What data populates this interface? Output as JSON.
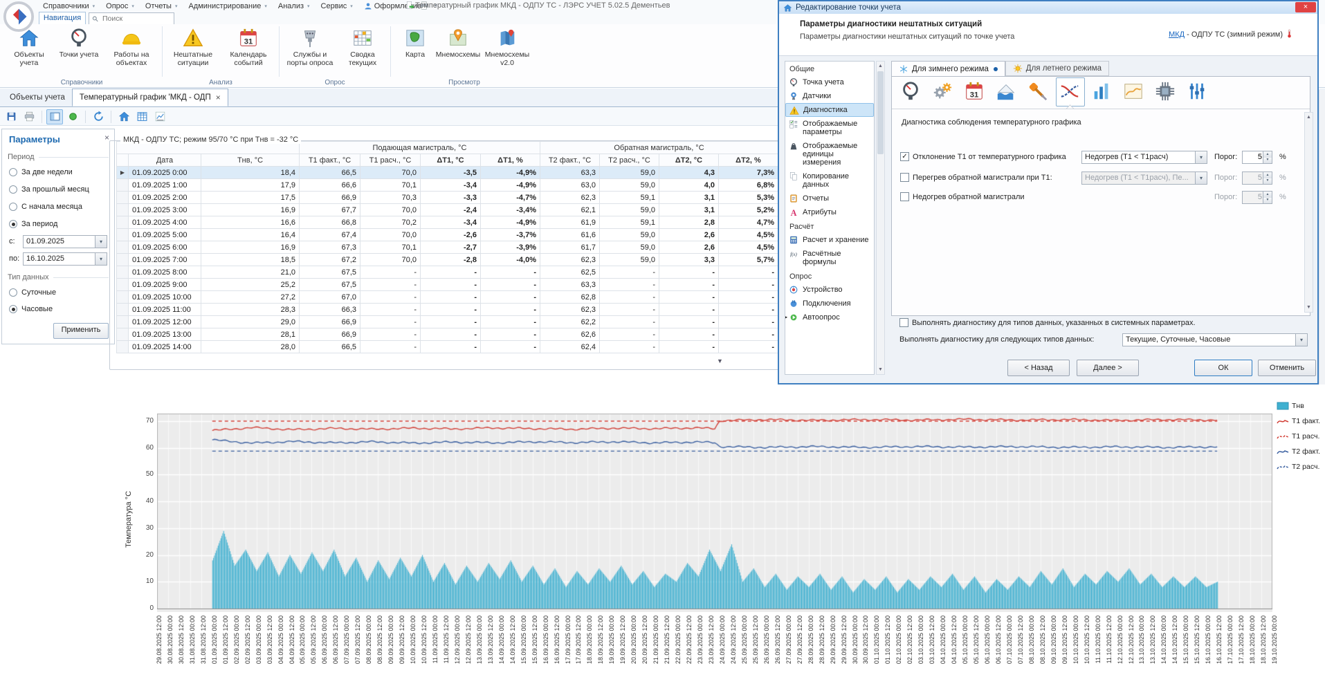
{
  "app": {
    "title": "Температурный график МКД - ОДПУ ТС - ЛЭРС УЧЕТ 5.02.5 Дементьев",
    "menus": [
      "Справочники",
      "Опрос",
      "Отчеты",
      "Администрирование",
      "Анализ",
      "Сервис",
      "Оформление"
    ],
    "nav_tab": "Навигация",
    "search_placeholder": "Поиск"
  },
  "ribbon": {
    "groups": [
      {
        "label": "Справочники",
        "items": [
          {
            "label": "Объекты учета",
            "icon": "home"
          },
          {
            "label": "Точки учета",
            "icon": "gauge"
          },
          {
            "label": "Работы на объектах",
            "icon": "hardhat"
          }
        ]
      },
      {
        "label": "Анализ",
        "items": [
          {
            "label": "Нештатные ситуации",
            "icon": "warning"
          },
          {
            "label": "Календарь событий",
            "icon": "calendar"
          }
        ]
      },
      {
        "label": "Опрос",
        "items": [
          {
            "label": "Службы и порты опроса",
            "icon": "ports"
          },
          {
            "label": "Сводка текущих",
            "icon": "summary-grid"
          }
        ]
      },
      {
        "label": "Просмотр",
        "items": [
          {
            "label": "Карта",
            "icon": "map"
          },
          {
            "label": "Мнемосхемы",
            "icon": "mnemo-pin"
          },
          {
            "label": "Мнемосхемы v2.0",
            "icon": "mnemo-pin2"
          }
        ]
      }
    ]
  },
  "doc_tabs": [
    {
      "label": "Объекты учета",
      "active": false,
      "closable": false
    },
    {
      "label": "Температурный график 'МКД - ОДП",
      "active": true,
      "closable": true
    }
  ],
  "toolbar": {
    "buttons": [
      {
        "icon": "save"
      },
      {
        "icon": "print"
      },
      {
        "sep": true
      },
      {
        "icon": "toggle-panel",
        "pressed": true
      },
      {
        "icon": "status"
      },
      {
        "sep": true
      },
      {
        "icon": "refresh"
      },
      {
        "sep": true
      },
      {
        "icon": "home-mini"
      },
      {
        "icon": "table-view"
      },
      {
        "icon": "chart-view"
      }
    ]
  },
  "params": {
    "title": "Параметры",
    "period_label": "Период",
    "period_options": [
      {
        "label": "За две недели",
        "selected": false
      },
      {
        "label": "За прошлый месяц",
        "selected": false
      },
      {
        "label": "С начала месяца",
        "selected": false
      },
      {
        "label": "За период",
        "selected": true
      }
    ],
    "from_label": "с:",
    "from_value": "01.09.2025",
    "to_label": "по:",
    "to_value": "16.10.2025",
    "datatype_label": "Тип данных",
    "datatype_options": [
      {
        "label": "Суточные",
        "selected": false
      },
      {
        "label": "Часовые",
        "selected": true
      }
    ],
    "apply_label": "Применить"
  },
  "table": {
    "caption": "МКД - ОДПУ ТС; режим 95/70 °С при Тнв = -32 °С",
    "group_headers": [
      "Подающая магистраль, °С",
      "Обратная магистраль, °С"
    ],
    "columns": [
      "Дата",
      "Тнв, °С",
      "Т1 факт., °С",
      "Т1 расч., °С",
      "ΔТ1, °С",
      "ΔТ1, %",
      "Т2 факт., °С",
      "Т2 расч., °С",
      "ΔТ2, °С",
      "ΔТ2, %"
    ],
    "rows": [
      {
        "date": "01.09.2025 0:00",
        "c": [
          "18,4",
          "66,5",
          "70,0",
          "-3,5",
          "-4,9%",
          "63,3",
          "59,0",
          "4,3",
          "7,3%"
        ],
        "red": [],
        "sel": true
      },
      {
        "date": "01.09.2025 1:00",
        "c": [
          "17,9",
          "66,6",
          "70,1",
          "-3,4",
          "-4,9%",
          "63,0",
          "59,0",
          "4,0",
          "6,8%"
        ],
        "red": [
          3,
          4,
          7,
          8
        ]
      },
      {
        "date": "01.09.2025 2:00",
        "c": [
          "17,5",
          "66,9",
          "70,3",
          "-3,3",
          "-4,7%",
          "62,3",
          "59,1",
          "3,1",
          "5,3%"
        ],
        "red": [
          3,
          4,
          7,
          8
        ]
      },
      {
        "date": "01.09.2025 3:00",
        "c": [
          "16,9",
          "67,7",
          "70,0",
          "-2,4",
          "-3,4%",
          "62,1",
          "59,0",
          "3,1",
          "5,2%"
        ],
        "red": [
          3,
          4,
          7,
          8
        ]
      },
      {
        "date": "01.09.2025 4:00",
        "c": [
          "16,6",
          "66,8",
          "70,2",
          "-3,4",
          "-4,9%",
          "61,9",
          "59,1",
          "2,8",
          "4,7%"
        ],
        "red": [
          3,
          4
        ]
      },
      {
        "date": "01.09.2025 5:00",
        "c": [
          "16,4",
          "67,4",
          "70,0",
          "-2,6",
          "-3,7%",
          "61,6",
          "59,0",
          "2,6",
          "4,5%"
        ],
        "red": [
          3,
          4
        ]
      },
      {
        "date": "01.09.2025 6:00",
        "c": [
          "16,9",
          "67,3",
          "70,1",
          "-2,7",
          "-3,9%",
          "61,7",
          "59,0",
          "2,6",
          "4,5%"
        ],
        "red": [
          3,
          4
        ]
      },
      {
        "date": "01.09.2025 7:00",
        "c": [
          "18,5",
          "67,2",
          "70,0",
          "-2,8",
          "-4,0%",
          "62,3",
          "59,0",
          "3,3",
          "5,7%"
        ],
        "red": [
          3,
          4,
          7,
          8
        ]
      },
      {
        "date": "01.09.2025 8:00",
        "c": [
          "21,0",
          "67,5",
          "-",
          "-",
          "-",
          "62,5",
          "-",
          "-",
          "-"
        ],
        "red": []
      },
      {
        "date": "01.09.2025 9:00",
        "c": [
          "25,2",
          "67,5",
          "-",
          "-",
          "-",
          "63,3",
          "-",
          "-",
          "-"
        ],
        "red": []
      },
      {
        "date": "01.09.2025 10:00",
        "c": [
          "27,2",
          "67,0",
          "-",
          "-",
          "-",
          "62,8",
          "-",
          "-",
          "-"
        ],
        "red": []
      },
      {
        "date": "01.09.2025 11:00",
        "c": [
          "28,3",
          "66,3",
          "-",
          "-",
          "-",
          "62,3",
          "-",
          "-",
          "-"
        ],
        "red": []
      },
      {
        "date": "01.09.2025 12:00",
        "c": [
          "29,0",
          "66,9",
          "-",
          "-",
          "-",
          "62,2",
          "-",
          "-",
          "-"
        ],
        "red": []
      },
      {
        "date": "01.09.2025 13:00",
        "c": [
          "28,1",
          "66,9",
          "-",
          "-",
          "-",
          "62,6",
          "-",
          "-",
          "-"
        ],
        "red": []
      },
      {
        "date": "01.09.2025 14:00",
        "c": [
          "28,0",
          "66,5",
          "-",
          "-",
          "-",
          "62,4",
          "-",
          "-",
          "-"
        ],
        "red": []
      }
    ]
  },
  "dialog": {
    "title": "Редактирование точки учета",
    "close_glyph": "×",
    "header": {
      "title": "Параметры диагностики нештатных ситуаций",
      "subtitle": "Параметры диагностики нештатных ситуаций по точке учета"
    },
    "point_link": {
      "link": "МКД",
      "rest": " - ОДПУ ТС (зимний режим)"
    },
    "nav": [
      {
        "type": "header",
        "label": "Общие"
      },
      {
        "type": "item",
        "icon": "gauge-mini",
        "label": "Точка учета"
      },
      {
        "type": "item",
        "icon": "sensor",
        "label": "Датчики"
      },
      {
        "type": "item",
        "icon": "warning-mini",
        "label": "Диагностика",
        "selected": true
      },
      {
        "type": "item",
        "icon": "display-params",
        "label": "Отображаемые параметры"
      },
      {
        "type": "item",
        "icon": "units",
        "label": "Отображаемые единицы измерения"
      },
      {
        "type": "item",
        "icon": "copy",
        "label": "Копирование данных"
      },
      {
        "type": "item",
        "icon": "report",
        "label": "Отчеты"
      },
      {
        "type": "item",
        "icon": "attribute",
        "label": "Атрибуты"
      },
      {
        "type": "header",
        "label": "Расчёт"
      },
      {
        "type": "item",
        "icon": "calculator",
        "label": "Расчет и хранение"
      },
      {
        "type": "item",
        "icon": "formula",
        "label": "Расчётные формулы"
      },
      {
        "type": "header",
        "label": "Опрос"
      },
      {
        "type": "item",
        "icon": "device",
        "label": "Устройство"
      },
      {
        "type": "item",
        "icon": "connection",
        "label": "Подключения"
      },
      {
        "type": "item",
        "icon": "autopoll",
        "label": "Автоопрос",
        "expander": true
      }
    ],
    "tabs": [
      {
        "label": "Для зимнего режима",
        "icon": "snowflake",
        "active": true,
        "modified": true
      },
      {
        "label": "Для летнего режима",
        "icon": "sun",
        "active": false,
        "modified": false
      }
    ],
    "toolbar_icons": [
      "gauge",
      "gears",
      "calendar",
      "flood",
      "screwdriver",
      "temp-graph",
      "bar-chart",
      "picture-chart",
      "memory-chip",
      "setpoints"
    ],
    "toolbar_selected_index": 5,
    "section_label": "Диагностика соблюдения температурного графика",
    "threshold_label": "Порог:",
    "rows": [
      {
        "checked": true,
        "label": "Отклонение Т1 от температурного графика",
        "dropdown": "Недогрев (Т1 < Т1расч)",
        "dropdown_disabled": false,
        "threshold": "5",
        "unit": "%",
        "disabled": false
      },
      {
        "checked": false,
        "label": "Перегрев обратной магистрали при Т1:",
        "dropdown": "Недогрев (Т1 < Т1расч), Пе...",
        "dropdown_disabled": true,
        "threshold": "5",
        "unit": "%",
        "disabled": true
      },
      {
        "checked": false,
        "label": "Недогрев обратной магистрали",
        "dropdown": null,
        "threshold": "5",
        "unit": "%",
        "disabled": true
      }
    ],
    "bottom": {
      "checkbox_checked": false,
      "checkbox_label": "Выполнять диагностику для типов данных, указанных в системных параметрах.",
      "types_label": "Выполнять диагностику для следующих типов данных:",
      "types_value": "Текущие, Суточные, Часовые"
    },
    "buttons": {
      "back": "< Назад",
      "next": "Далее >",
      "ok": "ОК",
      "cancel": "Отменить"
    }
  },
  "chart_data": {
    "type": "mixed",
    "title": "",
    "xlabel": "",
    "ylabel": "Температура °С",
    "ylim": [
      0,
      72
    ],
    "yticks": [
      0,
      10,
      20,
      30,
      40,
      50,
      60,
      70
    ],
    "grid": true,
    "legend_position": "right",
    "x_axis": {
      "start": "29.08.2025 12:00",
      "step_hours": 12,
      "count": 102
    },
    "data_window": {
      "start_frac": 0.0495,
      "end_frac": 0.9505
    },
    "series": [
      {
        "name": "Тнв",
        "type": "bar",
        "color": "#3fb0d0",
        "values_12h": [
          18,
          29,
          16,
          22,
          14,
          21,
          12,
          20,
          13,
          21,
          14,
          22,
          12,
          19,
          10,
          18,
          11,
          19,
          12,
          20,
          10,
          17,
          9,
          16,
          10,
          17,
          11,
          18,
          10,
          16,
          9,
          15,
          8,
          14,
          9,
          15,
          10,
          16,
          9,
          14,
          8,
          13,
          10,
          17,
          12,
          22,
          14,
          24,
          10,
          15,
          8,
          13,
          7,
          12,
          8,
          13,
          7,
          12,
          6,
          11,
          7,
          12,
          6,
          11,
          7,
          12,
          8,
          13,
          7,
          12,
          6,
          11,
          7,
          12,
          8,
          14,
          9,
          15,
          8,
          13,
          9,
          14,
          10,
          15,
          9,
          13,
          8,
          12,
          8,
          12,
          8,
          10
        ]
      },
      {
        "name": "Т1 факт.",
        "type": "line",
        "style": "solid",
        "color": "#d23f36",
        "points": [
          [
            0,
            66.5
          ],
          [
            0.04,
            67.6
          ],
          [
            0.08,
            66.8
          ],
          [
            0.12,
            67.3
          ],
          [
            0.16,
            67.0
          ],
          [
            0.2,
            67.4
          ],
          [
            0.24,
            67.1
          ],
          [
            0.28,
            67.5
          ],
          [
            0.32,
            67.2
          ],
          [
            0.36,
            67.0
          ],
          [
            0.4,
            67.4
          ],
          [
            0.44,
            67.2
          ],
          [
            0.48,
            67.5
          ],
          [
            0.5,
            67.2
          ],
          [
            0.505,
            70.2
          ],
          [
            0.55,
            70.6
          ],
          [
            0.6,
            70.3
          ],
          [
            0.65,
            70.6
          ],
          [
            0.7,
            70.4
          ],
          [
            0.75,
            70.7
          ],
          [
            0.8,
            70.4
          ],
          [
            0.85,
            70.6
          ],
          [
            0.9,
            70.3
          ],
          [
            0.95,
            70.6
          ],
          [
            1,
            70.4
          ]
        ]
      },
      {
        "name": "Т1 расч.",
        "type": "line",
        "style": "dashed",
        "color": "#d23f36",
        "points": [
          [
            0,
            70
          ],
          [
            1,
            70
          ]
        ]
      },
      {
        "name": "Т2 факт.",
        "type": "line",
        "style": "solid",
        "color": "#3a5fa0",
        "points": [
          [
            0,
            63.0
          ],
          [
            0.04,
            61.8
          ],
          [
            0.08,
            62.4
          ],
          [
            0.12,
            61.9
          ],
          [
            0.16,
            62.3
          ],
          [
            0.2,
            61.8
          ],
          [
            0.24,
            62.2
          ],
          [
            0.28,
            61.9
          ],
          [
            0.32,
            62.3
          ],
          [
            0.36,
            62.0
          ],
          [
            0.4,
            62.3
          ],
          [
            0.44,
            61.9
          ],
          [
            0.48,
            62.2
          ],
          [
            0.5,
            62.0
          ],
          [
            0.505,
            60.5
          ],
          [
            0.55,
            60.2
          ],
          [
            0.6,
            60.5
          ],
          [
            0.65,
            60.2
          ],
          [
            0.7,
            60.5
          ],
          [
            0.75,
            60.3
          ],
          [
            0.8,
            60.5
          ],
          [
            0.85,
            60.2
          ],
          [
            0.9,
            60.4
          ],
          [
            0.95,
            60.2
          ],
          [
            1,
            60.4
          ]
        ]
      },
      {
        "name": "Т2 расч.",
        "type": "line",
        "style": "dashed",
        "color": "#3a5fa0",
        "points": [
          [
            0,
            58.8
          ],
          [
            1,
            58.8
          ]
        ]
      }
    ]
  }
}
